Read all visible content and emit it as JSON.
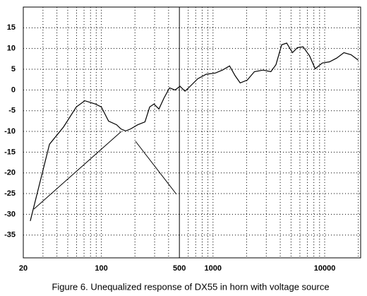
{
  "chart_data": {
    "type": "line",
    "title": "Figure 6.  Unequalized response of DX55 in horn with voltage source",
    "x": [
      23.1,
      34.3,
      45.9,
      59.7,
      71,
      88.6,
      100,
      116,
      137,
      150,
      165,
      183,
      212,
      246,
      271,
      296,
      328,
      363,
      408,
      458,
      506,
      561,
      630,
      730,
      868,
      1052,
      1216,
      1408,
      1582,
      1751,
      2028,
      2347,
      2805,
      3300,
      3660,
      4120,
      4570,
      5150,
      5700,
      6410,
      7330,
      8230,
      9530,
      11050,
      12820,
      14870,
      17250,
      20000
    ],
    "series": [
      {
        "color": "#000000",
        "values": [
          -31.6,
          -13.1,
          -8.9,
          -4.1,
          -2.6,
          -3.4,
          -4.1,
          -7.5,
          -8.4,
          -9.4,
          -9.9,
          -9.4,
          -8.4,
          -7.7,
          -4.1,
          -3.4,
          -4.6,
          -2.0,
          0.5,
          0,
          0.9,
          -0.3,
          1.0,
          2.7,
          3.8,
          4.1,
          4.8,
          5.8,
          3.4,
          1.7,
          2.4,
          4.4,
          4.8,
          4.4,
          6.1,
          10.9,
          11.3,
          9.0,
          10.2,
          10.4,
          8.2,
          5.1,
          6.5,
          6.8,
          7.7,
          9.0,
          8.5,
          7.2
        ]
      }
    ],
    "xlim": [
      20,
      21000
    ],
    "xlog": true,
    "xticks": [
      20,
      100,
      500,
      1000,
      10000
    ],
    "xgrid": [
      30,
      40,
      50,
      60,
      70,
      80,
      90,
      200,
      300,
      400,
      600,
      700,
      800,
      900,
      2000,
      3000,
      4000,
      5000,
      6000,
      7000,
      8000,
      9000,
      20000
    ],
    "vline": 500,
    "ylim": [
      -40.5,
      20
    ],
    "yticks": [
      15,
      10,
      5,
      0,
      -5,
      -10,
      -15,
      -20,
      -25,
      -30,
      -35
    ],
    "grid": true
  }
}
